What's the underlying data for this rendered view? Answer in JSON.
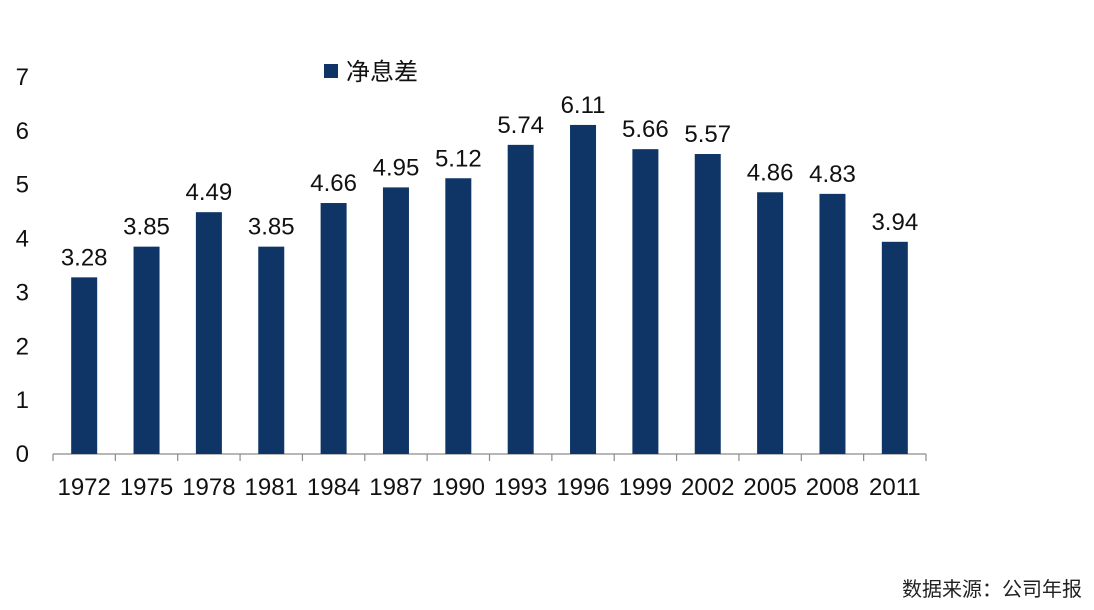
{
  "chart_data": {
    "type": "bar",
    "categories": [
      "1972",
      "1975",
      "1978",
      "1981",
      "1984",
      "1987",
      "1990",
      "1993",
      "1996",
      "1999",
      "2002",
      "2005",
      "2008",
      "2011"
    ],
    "series": [
      {
        "name": "净息差",
        "values": [
          3.28,
          3.85,
          4.49,
          3.85,
          4.66,
          4.95,
          5.12,
          5.74,
          6.11,
          5.66,
          5.57,
          4.86,
          4.83,
          3.94
        ],
        "color": "#0e3566"
      }
    ],
    "ylim": [
      0,
      7
    ],
    "yticks": [
      0,
      1,
      2,
      3,
      4,
      5,
      6,
      7
    ],
    "grid": false,
    "legend": "top-center",
    "title": "",
    "xlabel": "",
    "ylabel": ""
  },
  "source_note": "数据来源：公司年报"
}
